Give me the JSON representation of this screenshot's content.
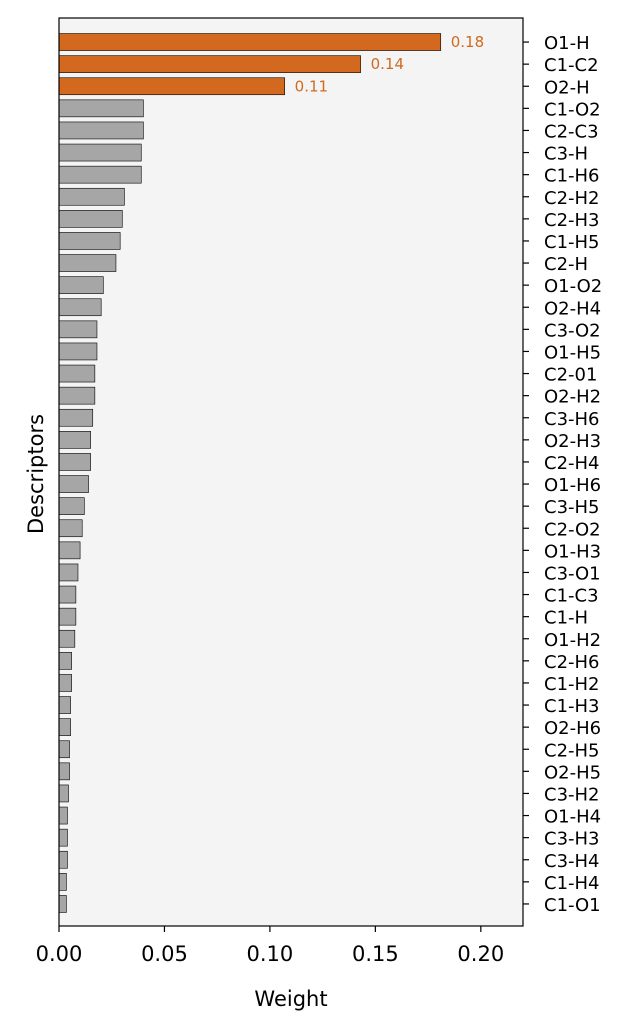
{
  "chart_data": {
    "type": "bar",
    "orientation": "horizontal",
    "xlabel": "Weight",
    "ylabel": "Descriptors",
    "xlim": [
      0,
      0.22
    ],
    "xticks": [
      "0.00",
      "0.05",
      "0.10",
      "0.15",
      "0.20"
    ],
    "xtick_values": [
      0,
      0.05,
      0.1,
      0.15,
      0.2
    ],
    "grid": false,
    "highlight_color": "#d2691e",
    "base_color": "#a6a6a6",
    "background_color": "#f4f4f4",
    "categories": [
      "O1-H",
      "C1-C2",
      "O2-H",
      "C1-O2",
      "C2-C3",
      "C3-H",
      "C1-H6",
      "C2-H2",
      "C2-H3",
      "C1-H5",
      "C2-H",
      "O1-O2",
      "O2-H4",
      "C3-O2",
      "O1-H5",
      "C2-01",
      "O2-H2",
      "C3-H6",
      "O2-H3",
      "C2-H4",
      "O1-H6",
      "C3-H5",
      "C2-O2",
      "O1-H3",
      "C3-O1",
      "C1-C3",
      "C1-H",
      "O1-H2",
      "C2-H6",
      "C1-H2",
      "C1-H3",
      "O2-H6",
      "C2-H5",
      "O2-H5",
      "C3-H2",
      "O1-H4",
      "C3-H3",
      "C3-H4",
      "C1-H4",
      "C1-O1"
    ],
    "values": [
      0.181,
      0.143,
      0.107,
      0.04,
      0.04,
      0.039,
      0.039,
      0.031,
      0.03,
      0.029,
      0.027,
      0.021,
      0.02,
      0.018,
      0.018,
      0.017,
      0.017,
      0.016,
      0.015,
      0.015,
      0.014,
      0.012,
      0.011,
      0.01,
      0.009,
      0.008,
      0.008,
      0.0075,
      0.006,
      0.006,
      0.0055,
      0.0055,
      0.005,
      0.005,
      0.0045,
      0.004,
      0.004,
      0.004,
      0.0035,
      0.0035
    ],
    "highlighted": [
      true,
      true,
      true,
      false,
      false,
      false,
      false,
      false,
      false,
      false,
      false,
      false,
      false,
      false,
      false,
      false,
      false,
      false,
      false,
      false,
      false,
      false,
      false,
      false,
      false,
      false,
      false,
      false,
      false,
      false,
      false,
      false,
      false,
      false,
      false,
      false,
      false,
      false,
      false,
      false
    ],
    "data_labels": [
      "0.18",
      "0.14",
      "0.11",
      "",
      "",
      "",
      "",
      "",
      "",
      "",
      "",
      "",
      "",
      "",
      "",
      "",
      "",
      "",
      "",
      "",
      "",
      "",
      "",
      "",
      "",
      "",
      "",
      "",
      "",
      "",
      "",
      "",
      "",
      "",
      "",
      "",
      "",
      "",
      "",
      ""
    ]
  }
}
